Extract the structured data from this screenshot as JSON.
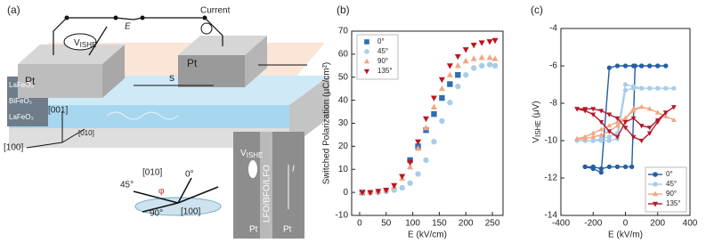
{
  "diagram": {
    "panel_label": "(a)",
    "vishe": [
      "V",
      "ISHE"
    ],
    "e": "E",
    "current": "Current",
    "pt_left": "Pt",
    "pt_right": "Pt",
    "s": "s",
    "layers": [
      "LaFeO₃",
      "BiFeO₃",
      "LaFeO₃"
    ],
    "axis_001": "[001]",
    "axis_010": "[010]",
    "axis_100": "[100]",
    "compass": {
      "dir_010": "[010]",
      "zero": "0°",
      "forty_five": "45°",
      "phi": "φ",
      "ninety": "90°",
      "dir_100": "[100]"
    },
    "inset": {
      "vishe": [
        "V",
        "ISHE"
      ],
      "stack": "LFO/BFO/LFO",
      "current": "I",
      "pt_left": "Pt",
      "pt_right": "Pt"
    }
  },
  "chart_data": [
    {
      "type": "scatter",
      "panel_label": "(b)",
      "xlabel": "E (kV/cm)",
      "ylabel": "Switched Polarization (μC/cm²)",
      "xlim": [
        -15,
        270
      ],
      "xticks": [
        0,
        50,
        100,
        150,
        200,
        250
      ],
      "ylim": [
        -10,
        70
      ],
      "yticks": [
        -10,
        0,
        10,
        20,
        30,
        40,
        50,
        60,
        70
      ],
      "legend": "upper left",
      "line": false,
      "x": [
        5,
        20,
        35,
        50,
        65,
        80,
        95,
        110,
        125,
        140,
        155,
        170,
        185,
        200,
        215,
        230,
        245,
        255
      ],
      "series": [
        {
          "name": "0°",
          "color": "#2e6db4",
          "marker": "square",
          "values": [
            0,
            null,
            null,
            null,
            null,
            null,
            14,
            20,
            27,
            34,
            41,
            47,
            51,
            null,
            null,
            null,
            null,
            null
          ]
        },
        {
          "name": "45°",
          "color": "#a9cde8",
          "marker": "circle",
          "values": [
            0,
            0,
            0,
            0.5,
            1,
            2,
            4,
            8,
            14,
            22,
            31,
            39,
            46,
            51,
            54,
            55,
            55.5,
            55
          ]
        },
        {
          "name": "90°",
          "color": "#f4a582",
          "marker": "triangle-up",
          "values": [
            0,
            0,
            0.5,
            1,
            2.5,
            6,
            11,
            19,
            28,
            37,
            45,
            51,
            55,
            57,
            58,
            58.5,
            58.5,
            58
          ]
        },
        {
          "name": "135°",
          "color": "#c0141e",
          "marker": "triangle-down",
          "values": [
            0,
            0,
            0.5,
            1,
            3,
            7,
            13,
            22,
            32,
            41,
            49,
            55,
            59,
            62,
            64,
            65,
            65.5,
            66
          ]
        }
      ]
    },
    {
      "type": "line",
      "panel_label": "(c)",
      "xlabel": "E (kV/m)",
      "ylabel": [
        "V",
        "ISHE",
        " (μV)"
      ],
      "xlim": [
        -400,
        400
      ],
      "xticks": [
        -400,
        -200,
        0,
        200,
        400
      ],
      "ylim": [
        -14,
        -4
      ],
      "yticks": [
        -14,
        -12,
        -10,
        -8,
        -6,
        -4
      ],
      "legend": "lower right",
      "line": true,
      "series": [
        {
          "name": "0°",
          "color": "#1f5fa6",
          "marker": "circle",
          "x": [
            -250,
            -200,
            -150,
            -100,
            -50,
            0,
            40,
            60,
            100,
            150,
            200,
            250,
            200,
            150,
            100,
            50,
            0,
            -50,
            -100,
            -150,
            -200,
            -250
          ],
          "values": [
            -11.4,
            -11.4,
            -11.5,
            -11.4,
            -11.4,
            -11.4,
            -11.4,
            -6,
            -6,
            -6,
            -6,
            -6,
            -6,
            -6,
            -6,
            -6,
            -6,
            -6,
            -6.1,
            -11.7,
            -11.5,
            -11.4
          ]
        },
        {
          "name": "45°",
          "color": "#a9cde8",
          "marker": "circle",
          "x": [
            -300,
            -250,
            -200,
            -150,
            -100,
            -50,
            0,
            50,
            100,
            150,
            200,
            250,
            300,
            250,
            200,
            150,
            100,
            50,
            0,
            -50,
            -100,
            -150,
            -200,
            -250,
            -300
          ],
          "values": [
            -10,
            -10,
            -10,
            -10,
            -10,
            -9.9,
            -7.3,
            -7.2,
            -7.2,
            -7.2,
            -7.2,
            -7.2,
            -7.2,
            -7.2,
            -7.2,
            -7.2,
            -7.2,
            -7.1,
            -7,
            -9.6,
            -9.8,
            -9.9,
            -10,
            -10,
            -10
          ]
        },
        {
          "name": "90°",
          "color": "#f4a582",
          "marker": "triangle-up",
          "x": [
            -300,
            -250,
            -200,
            -150,
            -100,
            -50,
            0,
            50,
            100,
            150,
            200,
            250,
            300,
            250,
            200,
            150,
            100,
            50,
            0,
            -50,
            -100,
            -150,
            -200,
            -250,
            -300
          ],
          "values": [
            -9.9,
            -9.8,
            -9.6,
            -9.4,
            -9.2,
            -9,
            -8.8,
            -8.3,
            -8.2,
            -8.3,
            -8.5,
            -8.7,
            -8.9,
            -8.7,
            -8.5,
            -8.3,
            -8.2,
            -8.4,
            -8.8,
            -9.2,
            -9.5,
            -9.7,
            -9.8,
            -9.9,
            -9.9
          ]
        },
        {
          "name": "135°",
          "color": "#b5172a",
          "marker": "triangle-down",
          "x": [
            -300,
            -250,
            -200,
            -150,
            -100,
            -50,
            0,
            50,
            100,
            150,
            200,
            250,
            300,
            250,
            200,
            150,
            100,
            50,
            0,
            -50,
            -100,
            -150,
            -200,
            -250,
            -300
          ],
          "values": [
            -8.3,
            -8.3,
            -8.3,
            -8.4,
            -8.6,
            -8.8,
            -9.3,
            -9.8,
            -10,
            -9.6,
            -9,
            -8.5,
            -8.2,
            -8.5,
            -8.9,
            -9.3,
            -9.2,
            -8.8,
            -9,
            -9.8,
            -9.5,
            -9,
            -8.6,
            -8.4,
            -8.3
          ]
        }
      ]
    }
  ]
}
